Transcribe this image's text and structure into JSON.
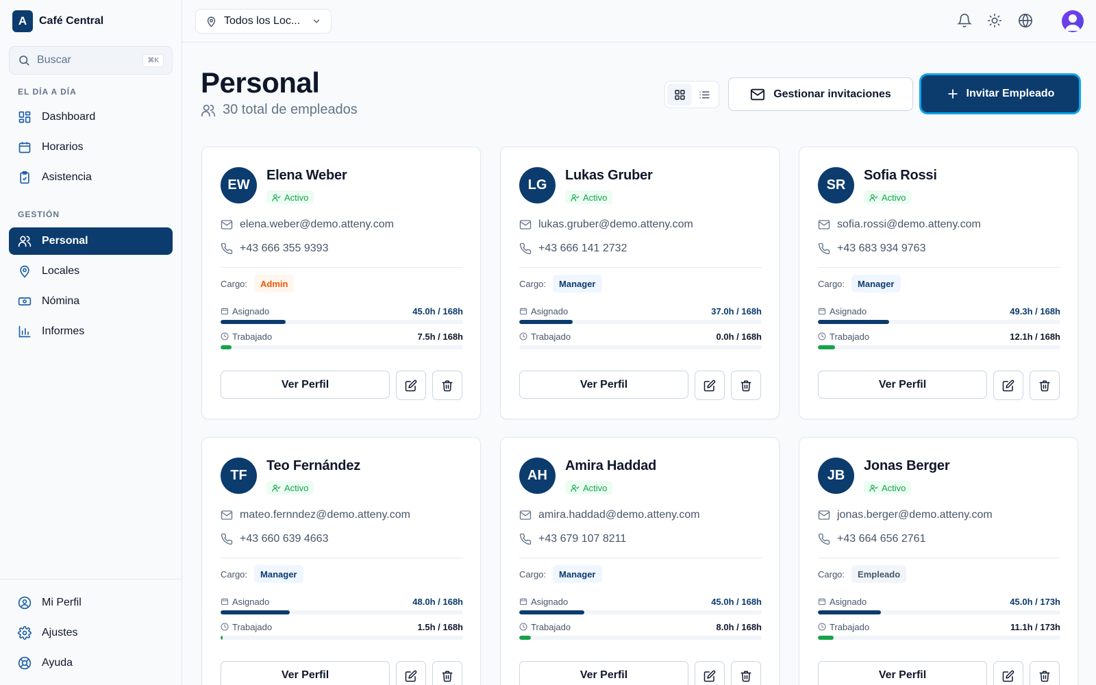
{
  "app": {
    "logo_letter": "A",
    "name": "Café Central"
  },
  "search": {
    "placeholder": "Buscar",
    "shortcut": "⌘K"
  },
  "sidebar": {
    "section_daily": "EL DÍA A DÍA",
    "section_management": "GESTIÓN",
    "items": [
      {
        "label": "Dashboard",
        "icon": "dashboard-icon"
      },
      {
        "label": "Horarios",
        "icon": "calendar-icon"
      },
      {
        "label": "Asistencia",
        "icon": "clipboard-icon"
      },
      {
        "label": "Personal",
        "icon": "users-icon",
        "active": true
      },
      {
        "label": "Locales",
        "icon": "map-pin-icon"
      },
      {
        "label": "Nómina",
        "icon": "banknote-icon"
      },
      {
        "label": "Informes",
        "icon": "bar-chart-icon"
      }
    ],
    "bottom_items": [
      {
        "label": "Mi Perfil",
        "icon": "user-circle-icon"
      },
      {
        "label": "Ajustes",
        "icon": "gear-icon"
      },
      {
        "label": "Ayuda",
        "icon": "help-icon"
      }
    ]
  },
  "topbar": {
    "location_select": "Todos los Loc..."
  },
  "header": {
    "title": "Personal",
    "subtitle": "30 total de empleados",
    "manage_invites": "Gestionar invitaciones",
    "invite_employee": "Invitar Empleado"
  },
  "labels": {
    "role": "Cargo:",
    "assigned": "Asignado",
    "worked": "Trabajado",
    "view_profile": "Ver Perfil"
  },
  "colors": {
    "accent": "#0c3b6e",
    "active_green": "#16a34a",
    "worked_bar": "#16a34a",
    "admin_badge": "#ea580c"
  },
  "employees": [
    {
      "initials": "EW",
      "name": "Elena Weber",
      "status": "Activo",
      "email": "elena.weber@demo.atteny.com",
      "phone": "+43 666 355 9393",
      "role": "Admin",
      "assigned": "45.0h / 168h",
      "worked": "7.5h / 168h",
      "assigned_fraction": 0.268,
      "worked_fraction": 0.045
    },
    {
      "initials": "LG",
      "name": "Lukas Gruber",
      "status": "Activo",
      "email": "lukas.gruber@demo.atteny.com",
      "phone": "+43 666 141 2732",
      "role": "Manager",
      "assigned": "37.0h / 168h",
      "worked": "0.0h / 168h",
      "assigned_fraction": 0.22,
      "worked_fraction": 0
    },
    {
      "initials": "SR",
      "name": "Sofia Rossi",
      "status": "Activo",
      "email": "sofia.rossi@demo.atteny.com",
      "phone": "+43 683 934 9763",
      "role": "Manager",
      "assigned": "49.3h / 168h",
      "worked": "12.1h / 168h",
      "assigned_fraction": 0.293,
      "worked_fraction": 0.072
    },
    {
      "initials": "TF",
      "name": "Teo Fernández",
      "status": "Activo",
      "email": "mateo.fernndez@demo.atteny.com",
      "phone": "+43 660 639 4663",
      "role": "Manager",
      "assigned": "48.0h / 168h",
      "worked": "1.5h / 168h",
      "assigned_fraction": 0.286,
      "worked_fraction": 0.009
    },
    {
      "initials": "AH",
      "name": "Amira Haddad",
      "status": "Activo",
      "email": "amira.haddad@demo.atteny.com",
      "phone": "+43 679 107 8211",
      "role": "Manager",
      "assigned": "45.0h / 168h",
      "worked": "8.0h / 168h",
      "assigned_fraction": 0.268,
      "worked_fraction": 0.048
    },
    {
      "initials": "JB",
      "name": "Jonas Berger",
      "status": "Activo",
      "email": "jonas.berger@demo.atteny.com",
      "phone": "+43 664 656 2761",
      "role": "Empleado",
      "assigned": "45.0h / 173h",
      "worked": "11.1h / 173h",
      "assigned_fraction": 0.26,
      "worked_fraction": 0.064
    }
  ]
}
